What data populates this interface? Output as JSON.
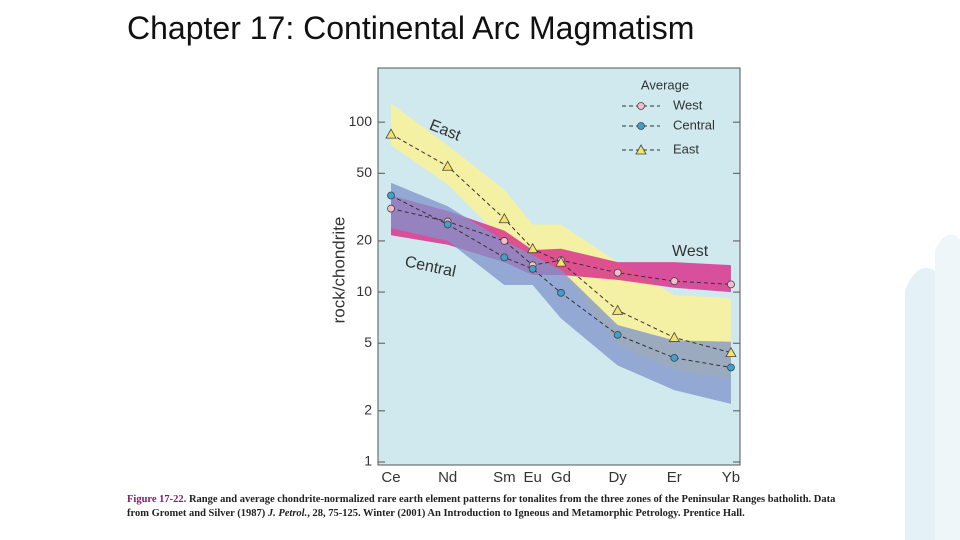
{
  "slide_title": "Chapter 17: Continental Arc Magmatism",
  "chart_data": {
    "type": "line",
    "y_label": "rock/chondrite",
    "legend_title": "Average",
    "categories": [
      "Ce",
      "Nd",
      "Sm",
      "Eu",
      "Gd",
      "Dy",
      "Er",
      "Yb"
    ],
    "ylim": [
      1,
      200
    ],
    "yticks": [
      1,
      2,
      5,
      10,
      20,
      50,
      100
    ],
    "log_scale": true,
    "series": [
      {
        "name": "West",
        "color": "#f3bccb",
        "marker": "circle",
        "band_color": "#d9358c",
        "values": [
          31,
          26,
          20,
          14.4,
          15.4,
          13,
          11.6,
          11.1
        ],
        "range_high": [
          37,
          30,
          23,
          17.7,
          18,
          15,
          15,
          14.4
        ],
        "range_low": [
          21.6,
          19,
          15,
          12.6,
          12.6,
          11.8,
          10.6,
          10
        ]
      },
      {
        "name": "Central",
        "color": "#3fa0d0",
        "marker": "circle",
        "band_color": "#7f93c9",
        "values": [
          37,
          25,
          16,
          13.7,
          9.9,
          5.6,
          4.1,
          3.6
        ],
        "range_high": [
          44,
          32,
          20,
          16.5,
          13.5,
          6.4,
          5.2,
          5.1
        ],
        "range_low": [
          23.8,
          20,
          11,
          11,
          7,
          3.7,
          2.65,
          2.2
        ]
      },
      {
        "name": "East",
        "color": "#f2e46a",
        "marker": "triangle",
        "band_color": "#f4f0a4",
        "values": [
          85,
          55,
          27,
          18,
          15,
          7.8,
          5.4,
          4.4
        ],
        "range_high": [
          129,
          73,
          40,
          25,
          25,
          15,
          9.6,
          9.2
        ],
        "range_low": [
          73,
          43,
          20,
          15,
          13.5,
          4.9,
          3.5,
          3.1
        ]
      }
    ]
  },
  "caption": [
    "Figure 17-22.",
    " Range and average chondrite-normalized rare earth element patterns for tonalites from the three zones of the Peninsular Ranges batholith. Data from Gromet and Silver (1987) ",
    "J. Petrol.",
    ", 28, 75-125. Winter (2001) An Introduction to Igneous and Metamorphic Petrology. Prentice Hall."
  ]
}
